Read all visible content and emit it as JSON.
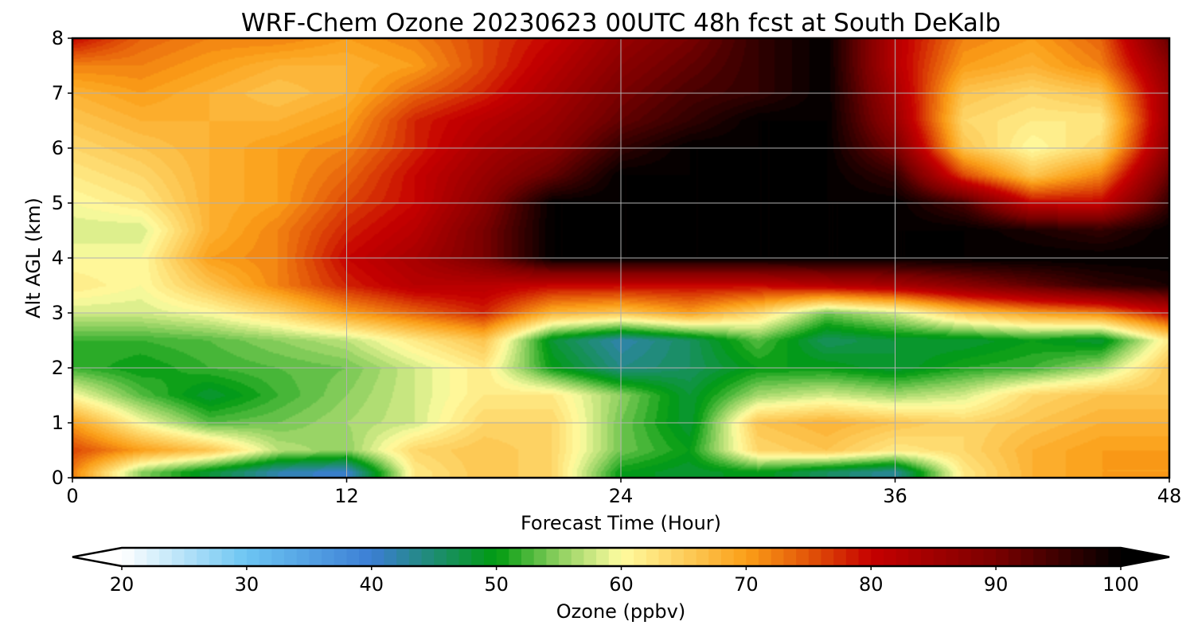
{
  "chart_data": {
    "type": "heatmap",
    "title": "WRF-Chem Ozone  20230623 00UTC 48h fcst at South DeKalb",
    "xlabel": "Forecast Time (Hour)",
    "ylabel": "Alt AGL (km)",
    "xlim": [
      0,
      48
    ],
    "ylim": [
      0,
      8
    ],
    "xticks": [
      0,
      12,
      24,
      36,
      48
    ],
    "yticks": [
      0,
      1,
      2,
      3,
      4,
      5,
      6,
      7,
      8
    ],
    "grid": true,
    "x": [
      0,
      3,
      6,
      9,
      12,
      15,
      18,
      21,
      24,
      27,
      30,
      33,
      36,
      39,
      42,
      45,
      48
    ],
    "y": [
      0.1,
      0.5,
      1.0,
      1.5,
      2.0,
      2.5,
      3.0,
      3.5,
      4.0,
      4.5,
      5.0,
      5.5,
      6.0,
      6.5,
      7.0,
      7.5,
      8.0
    ],
    "z": [
      [
        72,
        55,
        48,
        42,
        40,
        62,
        66,
        64,
        50,
        48,
        50,
        46,
        43,
        62,
        68,
        70,
        70
      ],
      [
        76,
        70,
        66,
        57,
        55,
        64,
        66,
        64,
        54,
        50,
        64,
        66,
        62,
        64,
        68,
        70,
        70
      ],
      [
        70,
        60,
        53,
        54,
        56,
        58,
        64,
        64,
        54,
        48,
        66,
        68,
        66,
        64,
        66,
        68,
        68
      ],
      [
        60,
        53,
        48,
        52,
        55,
        58,
        62,
        62,
        55,
        48,
        56,
        58,
        56,
        58,
        64,
        66,
        66
      ],
      [
        52,
        50,
        52,
        53,
        54,
        58,
        62,
        50,
        44,
        46,
        50,
        50,
        48,
        51,
        52,
        56,
        66
      ],
      [
        52,
        52,
        53,
        55,
        57,
        62,
        66,
        48,
        42,
        46,
        53,
        46,
        48,
        48,
        50,
        48,
        62
      ],
      [
        58,
        58,
        60,
        64,
        70,
        74,
        78,
        68,
        66,
        70,
        64,
        54,
        58,
        66,
        70,
        72,
        80
      ],
      [
        62,
        60,
        66,
        72,
        78,
        82,
        82,
        80,
        80,
        80,
        80,
        82,
        84,
        88,
        92,
        96,
        98
      ],
      [
        60,
        60,
        70,
        72,
        80,
        84,
        90,
        100,
        100,
        100,
        100,
        100,
        100,
        100,
        100,
        100,
        100
      ],
      [
        58,
        58,
        68,
        72,
        78,
        82,
        90,
        100,
        100,
        100,
        100,
        100,
        100,
        100,
        98,
        96,
        100
      ],
      [
        60,
        62,
        68,
        70,
        76,
        80,
        88,
        100,
        100,
        100,
        100,
        100,
        100,
        94,
        80,
        80,
        96
      ],
      [
        62,
        64,
        68,
        70,
        74,
        80,
        86,
        92,
        100,
        100,
        100,
        100,
        96,
        76,
        66,
        72,
        92
      ],
      [
        64,
        66,
        68,
        70,
        72,
        78,
        84,
        88,
        96,
        100,
        100,
        100,
        90,
        66,
        60,
        64,
        88
      ],
      [
        66,
        68,
        68,
        68,
        70,
        78,
        82,
        86,
        92,
        96,
        100,
        100,
        86,
        64,
        62,
        62,
        86
      ],
      [
        68,
        70,
        68,
        66,
        68,
        74,
        78,
        84,
        90,
        94,
        96,
        100,
        84,
        66,
        64,
        66,
        86
      ],
      [
        72,
        72,
        70,
        68,
        68,
        70,
        76,
        82,
        88,
        92,
        96,
        100,
        82,
        70,
        68,
        72,
        88
      ],
      [
        80,
        74,
        72,
        72,
        70,
        72,
        76,
        80,
        86,
        90,
        96,
        100,
        82,
        72,
        70,
        74,
        92
      ]
    ],
    "colorbar": {
      "label": "Ozone  (ppbv)",
      "min": 20,
      "max": 100,
      "extend": "both",
      "ticks": [
        20,
        30,
        40,
        50,
        60,
        70,
        80,
        90,
        100
      ],
      "colormap_stops": [
        {
          "value": 20,
          "color": "#ffffff"
        },
        {
          "value": 30,
          "color": "#6cc5f2"
        },
        {
          "value": 40,
          "color": "#3c7ed4"
        },
        {
          "value": 50,
          "color": "#009b10"
        },
        {
          "value": 55,
          "color": "#8ed060"
        },
        {
          "value": 60,
          "color": "#fffca0"
        },
        {
          "value": 70,
          "color": "#fb9f18"
        },
        {
          "value": 75,
          "color": "#e25508"
        },
        {
          "value": 80,
          "color": "#c60000"
        },
        {
          "value": 90,
          "color": "#7a0000"
        },
        {
          "value": 100,
          "color": "#000000"
        }
      ],
      "under_color": "#ffffff",
      "over_color": "#000000"
    }
  }
}
